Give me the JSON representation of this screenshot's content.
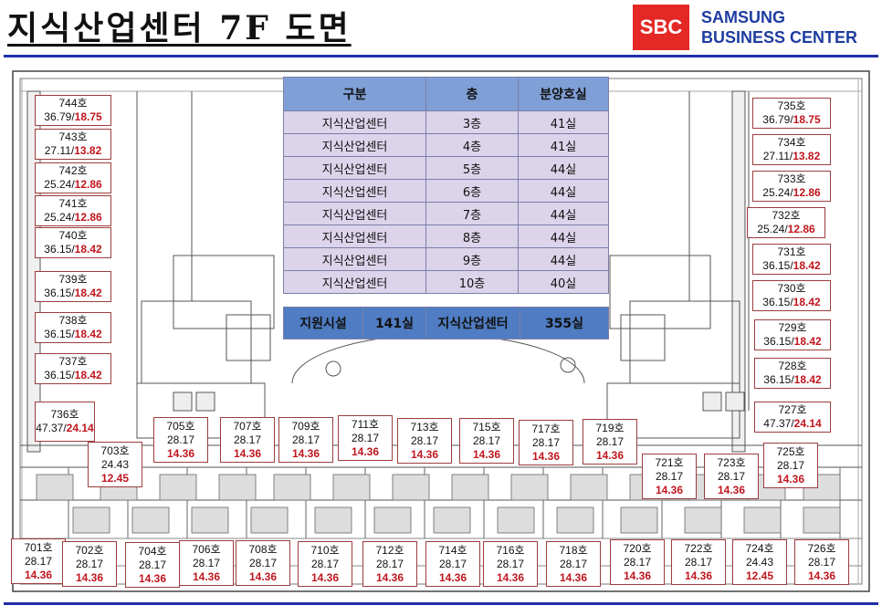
{
  "header": {
    "title": "지식산업센터 7F 도면",
    "logo_text": "SBC",
    "brand_line1": "SAMSUNG",
    "brand_line2": "BUSINESS CENTER"
  },
  "colors": {
    "accent": "#2030a8",
    "logo": "#e32826",
    "highlight": "#c0161e",
    "table_header": "#7f9fd6",
    "table_row": "#dcd4ea",
    "table_footer": "#4f7cc2"
  },
  "summary_table": {
    "headers": [
      "구분",
      "층",
      "분양호실"
    ],
    "rows": [
      [
        "지식산업센터",
        "3층",
        "41실"
      ],
      [
        "지식산업센터",
        "4층",
        "41실"
      ],
      [
        "지식산업센터",
        "5층",
        "44실"
      ],
      [
        "지식산업센터",
        "6층",
        "44실"
      ],
      [
        "지식산업센터",
        "7층",
        "44실"
      ],
      [
        "지식산업센터",
        "8층",
        "44실"
      ],
      [
        "지식산업센터",
        "9층",
        "44실"
      ],
      [
        "지식산업센터",
        "10층",
        "40실"
      ]
    ],
    "footer": [
      "지원시설",
      "141실",
      "지식산업센터",
      "355실"
    ]
  },
  "units_left": [
    {
      "no": "744호",
      "a": "36.79",
      "b": "18.75"
    },
    {
      "no": "743호",
      "a": "27.11",
      "b": "13.82"
    },
    {
      "no": "742호",
      "a": "25.24",
      "b": "12.86"
    },
    {
      "no": "741호",
      "a": "25.24",
      "b": "12.86"
    },
    {
      "no": "740호",
      "a": "36.15",
      "b": "18.42"
    },
    {
      "no": "739호",
      "a": "36.15",
      "b": "18.42"
    },
    {
      "no": "738호",
      "a": "36.15",
      "b": "18.42"
    },
    {
      "no": "737호",
      "a": "36.15",
      "b": "18.42"
    },
    {
      "no": "736호",
      "a": "47.37",
      "b": "24.14"
    }
  ],
  "units_right": [
    {
      "no": "735호",
      "a": "36.79",
      "b": "18.75"
    },
    {
      "no": "734호",
      "a": "27.11",
      "b": "13.82"
    },
    {
      "no": "733호",
      "a": "25.24",
      "b": "12.86"
    },
    {
      "no": "732호",
      "a": "25.24",
      "b": "12.86"
    },
    {
      "no": "731호",
      "a": "36.15",
      "b": "18.42"
    },
    {
      "no": "730호",
      "a": "36.15",
      "b": "18.42"
    },
    {
      "no": "729호",
      "a": "36.15",
      "b": "18.42"
    },
    {
      "no": "728호",
      "a": "36.15",
      "b": "18.42"
    },
    {
      "no": "727호",
      "a": "47.37",
      "b": "24.14"
    }
  ],
  "units_upper": [
    {
      "no": "705호",
      "a": "28.17",
      "b": "14.36"
    },
    {
      "no": "707호",
      "a": "28.17",
      "b": "14.36"
    },
    {
      "no": "709호",
      "a": "28.17",
      "b": "14.36"
    },
    {
      "no": "711호",
      "a": "28.17",
      "b": "14.36"
    },
    {
      "no": "713호",
      "a": "28.17",
      "b": "14.36"
    },
    {
      "no": "715호",
      "a": "28.17",
      "b": "14.36"
    },
    {
      "no": "717호",
      "a": "28.17",
      "b": "14.36"
    },
    {
      "no": "719호",
      "a": "28.17",
      "b": "14.36"
    },
    {
      "no": "703호",
      "a": "24.43",
      "b": "12.45"
    },
    {
      "no": "721호",
      "a": "28.17",
      "b": "14.36"
    },
    {
      "no": "723호",
      "a": "28.17",
      "b": "14.36"
    },
    {
      "no": "725호",
      "a": "28.17",
      "b": "14.36"
    }
  ],
  "units_bottom": [
    {
      "no": "701호",
      "a": "28.17",
      "b": "14.36"
    },
    {
      "no": "702호",
      "a": "28.17",
      "b": "14.36"
    },
    {
      "no": "704호",
      "a": "28.17",
      "b": "14.36"
    },
    {
      "no": "706호",
      "a": "28.17",
      "b": "14.36"
    },
    {
      "no": "708호",
      "a": "28.17",
      "b": "14.36"
    },
    {
      "no": "710호",
      "a": "28.17",
      "b": "14.36"
    },
    {
      "no": "712호",
      "a": "28.17",
      "b": "14.36"
    },
    {
      "no": "714호",
      "a": "28.17",
      "b": "14.36"
    },
    {
      "no": "716호",
      "a": "28.17",
      "b": "14.36"
    },
    {
      "no": "718호",
      "a": "28.17",
      "b": "14.36"
    },
    {
      "no": "720호",
      "a": "28.17",
      "b": "14.36"
    },
    {
      "no": "722호",
      "a": "28.17",
      "b": "14.36"
    },
    {
      "no": "724호",
      "a": "24.43",
      "b": "12.45"
    },
    {
      "no": "726호",
      "a": "28.17",
      "b": "14.36"
    }
  ]
}
